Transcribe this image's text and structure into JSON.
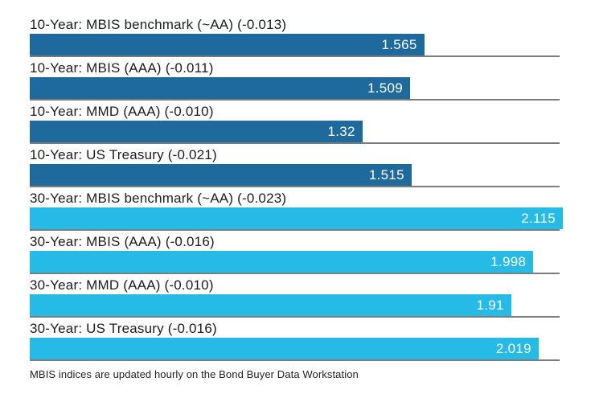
{
  "chart_data": {
    "type": "bar",
    "orientation": "horizontal",
    "title": "",
    "xlabel": "",
    "ylabel": "",
    "xlim": [
      0,
      2.115
    ],
    "grid": false,
    "legend_position": "none",
    "colors": {
      "ten_year_bar": "#1f6a9d",
      "thirty_year_bar": "#26bbe7",
      "separator": "#7c7c7c",
      "value_text": "#ffffff",
      "label_text": "#1c1c1c"
    },
    "rows": [
      {
        "label": "10-Year: MBIS benchmark (~AA) (-0.013)",
        "value": 1.565,
        "value_label": "1.565",
        "change": -0.013,
        "group": "10-Year",
        "color": "#1f6a9d"
      },
      {
        "label": "10-Year: MBIS (AAA) (-0.011)",
        "value": 1.509,
        "value_label": "1.509",
        "change": -0.011,
        "group": "10-Year",
        "color": "#1f6a9d"
      },
      {
        "label": "10-Year: MMD (AAA) (-0.010)",
        "value": 1.32,
        "value_label": "1.32",
        "change": -0.01,
        "group": "10-Year",
        "color": "#1f6a9d"
      },
      {
        "label": "10-Year: US Treasury (-0.021)",
        "value": 1.515,
        "value_label": "1.515",
        "change": -0.021,
        "group": "10-Year",
        "color": "#1f6a9d"
      },
      {
        "label": "30-Year: MBIS benchmark (~AA) (-0.023)",
        "value": 2.115,
        "value_label": "2.115",
        "change": -0.023,
        "group": "30-Year",
        "color": "#26bbe7"
      },
      {
        "label": "30-Year: MBIS (AAA) (-0.016)",
        "value": 1.998,
        "value_label": "1.998",
        "change": -0.016,
        "group": "30-Year",
        "color": "#26bbe7"
      },
      {
        "label": "30-Year: MMD (AAA) (-0.010)",
        "value": 1.91,
        "value_label": "1.91",
        "change": -0.01,
        "group": "30-Year",
        "color": "#26bbe7"
      },
      {
        "label": "30-Year: US Treasury (-0.016)",
        "value": 2.019,
        "value_label": "2.019",
        "change": -0.016,
        "group": "30-Year",
        "color": "#26bbe7"
      }
    ],
    "footnote": "MBIS indices are updated hourly on the Bond Buyer Data Workstation"
  }
}
